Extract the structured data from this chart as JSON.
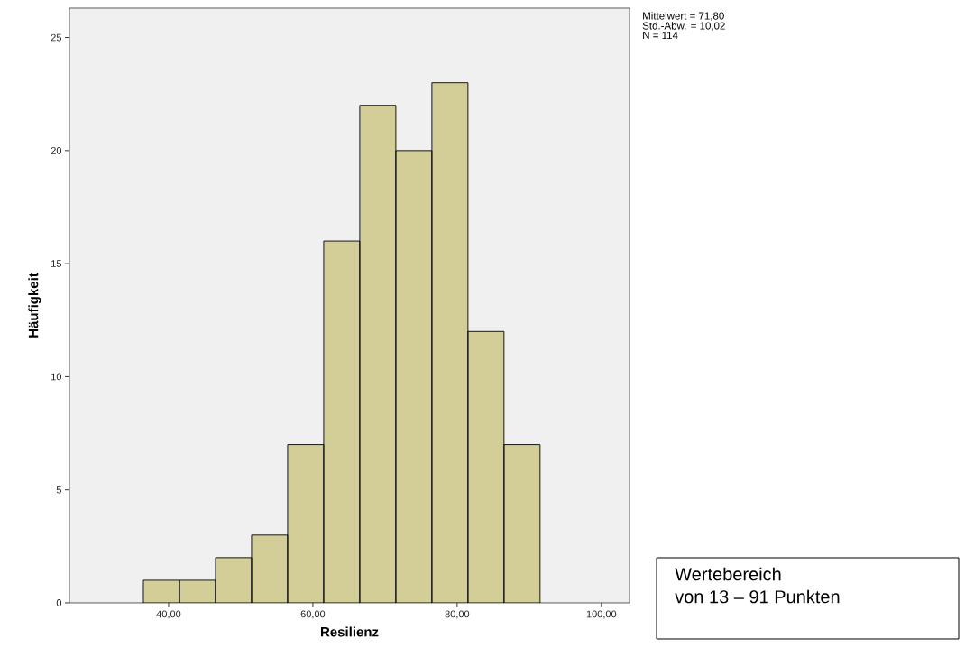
{
  "chart_data": {
    "type": "histogram",
    "xlabel": "Resilienz",
    "ylabel": "Häufigkeit",
    "bins": [
      36.5,
      41.5,
      46.5,
      51.5,
      56.5,
      61.5,
      66.5,
      71.5,
      76.5,
      81.5,
      86.5,
      91.5
    ],
    "values": [
      1,
      1,
      2,
      3,
      7,
      16,
      22,
      20,
      23,
      12,
      7
    ],
    "color": "#d3ce97",
    "xlim": [
      26.25,
      103.9
    ],
    "xticks": [
      {
        "value": 40,
        "label": "40,00"
      },
      {
        "value": 60,
        "label": "60,00"
      },
      {
        "value": 80,
        "label": "80,00"
      },
      {
        "value": 100,
        "label": "100,00"
      }
    ],
    "ylim": [
      0,
      26.3
    ],
    "yticks": [
      0,
      5,
      10,
      15,
      20,
      25
    ],
    "annotations": [
      "Mittelwert = 71,80",
      "Std.-Abw. = 10,02",
      "N = 114",
      "Wertebereich",
      "von 13 – 91 Punkten"
    ]
  }
}
